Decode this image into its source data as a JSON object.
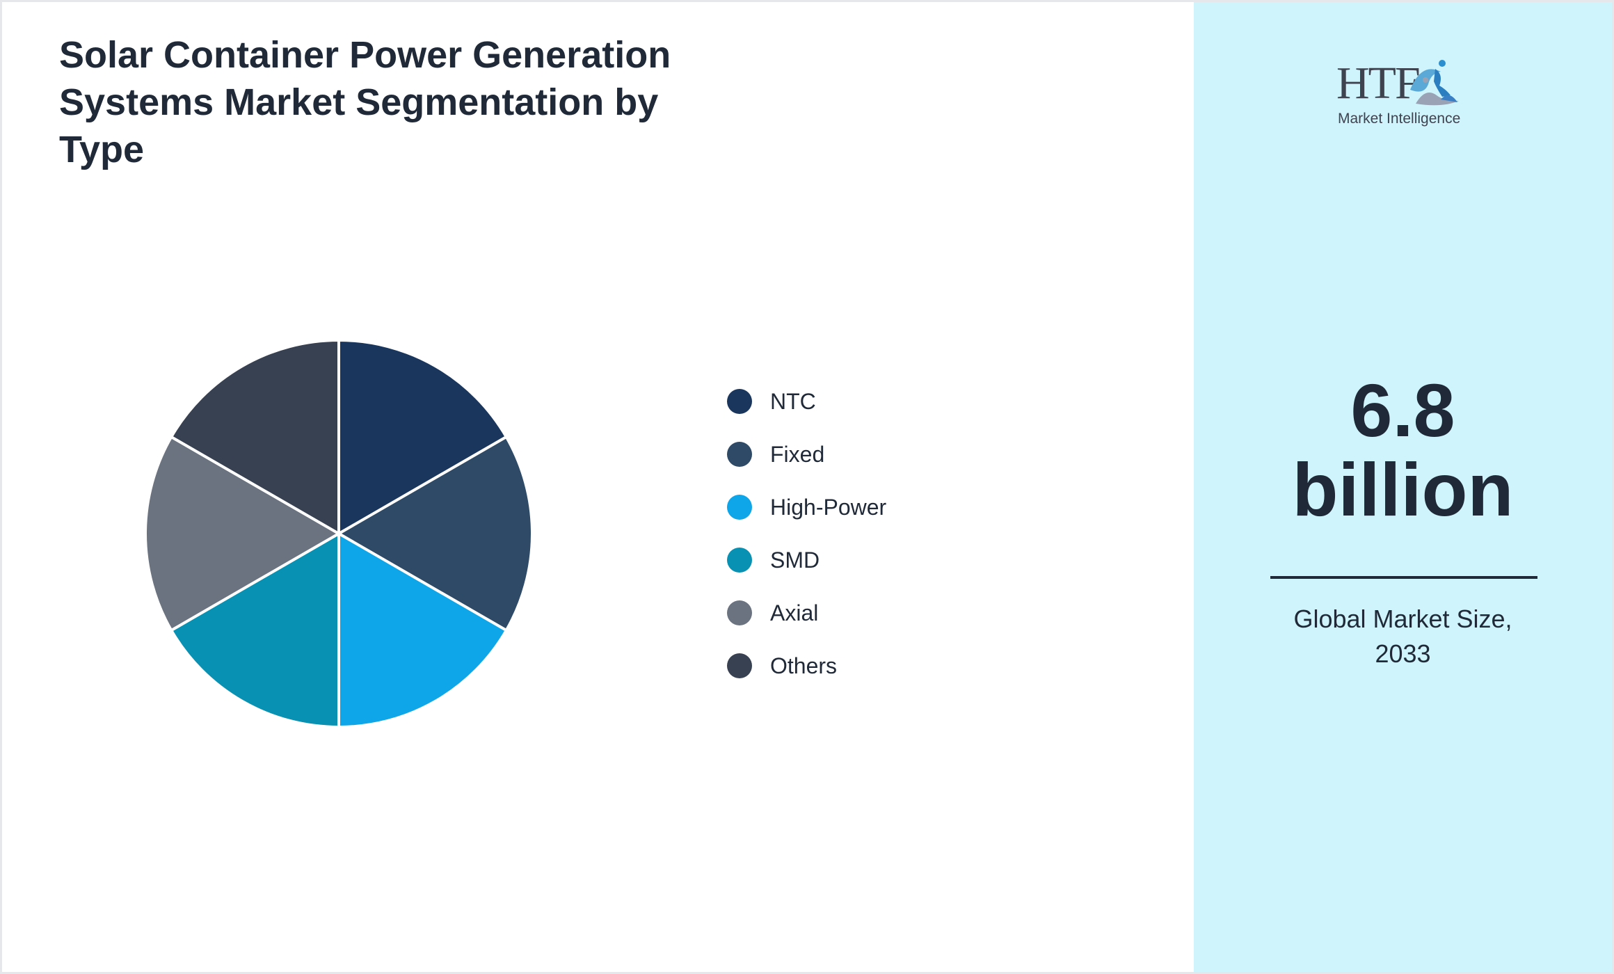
{
  "chart_data": {
    "type": "pie",
    "title": "Solar Container Power Generation Systems Market Segmentation by Type",
    "categories": [
      "NTC",
      "Fixed",
      "High-Power",
      "SMD",
      "Axial",
      "Others"
    ],
    "values": [
      16.67,
      16.67,
      16.67,
      16.67,
      16.67,
      16.67
    ],
    "colors": [
      "#1b365d",
      "#2e4a66",
      "#0ea5e9",
      "#0891b2",
      "#6b7280",
      "#374151"
    ],
    "legend_position": "right"
  },
  "side_panel": {
    "logo_text": "HTF",
    "logo_subtext": "Market Intelligence",
    "market_value_number": "6.8",
    "market_value_unit": "billion",
    "caption": "Global Market Size, 2033",
    "background": "#cff4fc"
  }
}
